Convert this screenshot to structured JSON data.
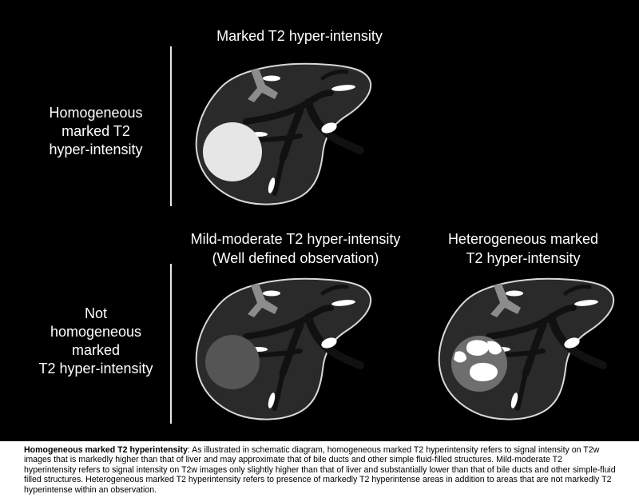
{
  "titles": {
    "top": "Marked T2 hyper-intensity",
    "bottom_left_line1": "Mild-moderate T2 hyper-intensity",
    "bottom_left_line2": "(Well defined observation)",
    "bottom_right_line1": "Heterogeneous marked",
    "bottom_right_line2": "T2 hyper-intensity"
  },
  "row_labels": {
    "top": [
      "Homogeneous",
      "marked T2",
      "hyper-intensity"
    ],
    "bottom": [
      "Not",
      "homogeneous",
      "marked",
      "T2 hyper-intensity"
    ]
  },
  "colors": {
    "background": "#000000",
    "liver_fill": "#2a2a2a",
    "liver_outline": "#d9d9d9",
    "vessel_dark": "#111111",
    "portal_vein": "#8c8c8c",
    "bile_ducts": "#ffffff",
    "lesion_marked": "#e6e6e6",
    "lesion_mild": "#555555",
    "lesion_hetero_base": "#6e6e6e"
  },
  "caption": {
    "heading": "Homogeneous marked T2 hyperintensity",
    "text": ": As illustrated in schematic diagram, homogeneous marked T2 hyperintensity refers to signal intensity on T2w images that is markedly higher than that of liver and may approximate that of bile ducts and other simple fluid-filled structures. Mild-moderate T2 hyperintensity refers to signal intensity on T2w images only slightly higher than that of liver and substantially lower than that of bile ducts and other simple-fluid filled structures. Heterogeneous marked T2 hyperintensity refers to presence of markedly T2 hyperintense areas in addition to areas that are not markedly T2 hyperintense within an observation."
  }
}
